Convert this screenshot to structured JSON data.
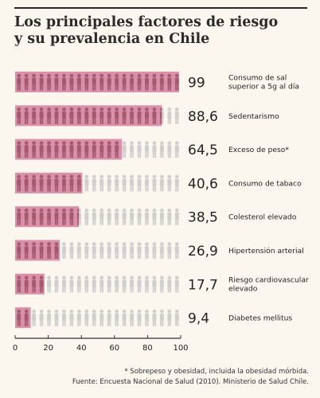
{
  "title_lines": [
    "Los principales factores de riesgo",
    "y su prevalencia en Chile"
  ],
  "chart_data": {
    "type": "bar",
    "orientation": "horizontal",
    "categories": [
      [
        "Consumo de sal",
        "superior a 5g al día"
      ],
      [
        "Sedentarismo"
      ],
      [
        "Exceso de peso*"
      ],
      [
        "Consumo de tabaco"
      ],
      [
        "Colesterol elevado"
      ],
      [
        "Hipertensión arterial"
      ],
      [
        "Riesgo cardiovascular",
        "elevado"
      ],
      [
        "Diabetes mellitus"
      ]
    ],
    "values": [
      99,
      88.6,
      64.5,
      40.6,
      38.5,
      26.9,
      17.7,
      9.4
    ],
    "value_labels": [
      "99",
      "88,6",
      "64,5",
      "40,6",
      "38,5",
      "26,9",
      "17,7",
      "9,4"
    ],
    "xlim": [
      0,
      100
    ],
    "xticks": [
      0,
      20,
      40,
      60,
      80,
      100
    ],
    "grid": false,
    "colors": {
      "fill": "#d67c9c",
      "figure_background": "#cfcfcf",
      "figure_highlight": "#7a3548",
      "axis": "#333333"
    },
    "icon": "person-icon"
  },
  "footnotes": [
    "* Sobrepeso y obesidad, incluida la obesidad mórbida.",
    "Fuente: Encuesta Nacional de Salud (2010). Ministerio de Salud Chile."
  ]
}
